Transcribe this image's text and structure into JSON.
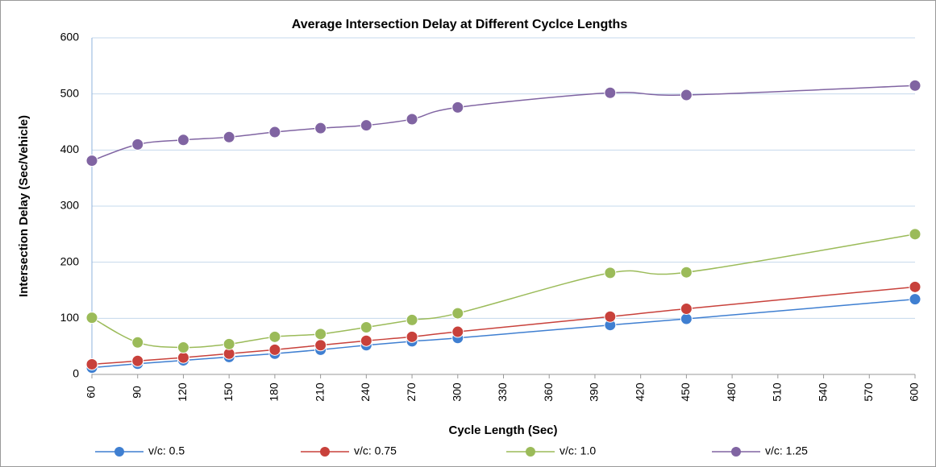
{
  "chart_data": {
    "type": "line",
    "title": "Average Intersection Delay at Different Cyclce Lengths",
    "x_label": "Cycle Length (Sec)",
    "y_label": "Intersection Delay (Sec/Vehicle)",
    "x": [
      60,
      90,
      120,
      150,
      180,
      210,
      240,
      270,
      300,
      400,
      450,
      600
    ],
    "series": [
      {
        "name": "v/c: 0.5",
        "color": "#3f7fd1",
        "values": [
          12,
          19,
          25,
          31,
          37,
          44,
          52,
          59,
          65,
          88,
          99,
          134
        ]
      },
      {
        "name": "v/c: 0.75",
        "color": "#c8413b",
        "values": [
          18,
          24,
          30,
          37,
          44,
          52,
          60,
          67,
          76,
          103,
          117,
          156
        ]
      },
      {
        "name": "v/c: 1.0",
        "color": "#9bbb59",
        "values": [
          101,
          57,
          48,
          54,
          67,
          72,
          84,
          97,
          109,
          181,
          182,
          250
        ]
      },
      {
        "name": "v/c: 1.25",
        "color": "#8064a2",
        "values": [
          381,
          410,
          418,
          423,
          432,
          439,
          444,
          455,
          476,
          502,
          498,
          515
        ]
      }
    ],
    "xlim": [
      60,
      600
    ],
    "xticks": [
      60,
      90,
      120,
      150,
      180,
      210,
      240,
      270,
      300,
      330,
      360,
      390,
      420,
      450,
      480,
      510,
      540,
      570,
      600
    ],
    "ylim": [
      0,
      600
    ],
    "yticks": [
      0,
      100,
      200,
      300,
      400,
      500,
      600
    ],
    "grid": true,
    "legend": "bottom"
  }
}
